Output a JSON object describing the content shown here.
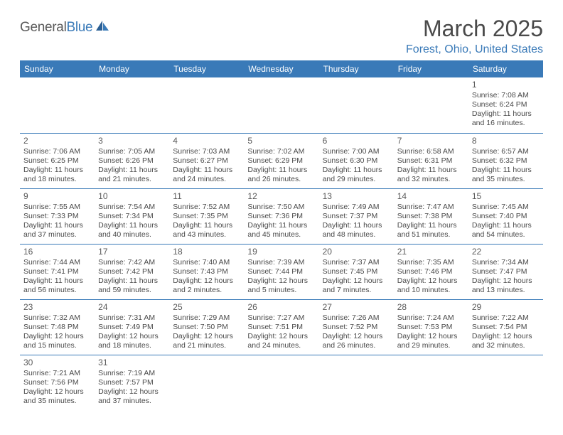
{
  "logo": {
    "text1": "General",
    "text2": "Blue"
  },
  "title": "March 2025",
  "location": "Forest, Ohio, United States",
  "header_bg": "#3a7ab8",
  "header_fg": "#ffffff",
  "border_color": "#3a7ab8",
  "text_color": "#4a4a4a",
  "location_color": "#3a7ab8",
  "weekdays": [
    "Sunday",
    "Monday",
    "Tuesday",
    "Wednesday",
    "Thursday",
    "Friday",
    "Saturday"
  ],
  "first_weekday_index": 6,
  "days": [
    {
      "n": 1,
      "sunrise": "7:08 AM",
      "sunset": "6:24 PM",
      "daylight": "11 hours and 16 minutes."
    },
    {
      "n": 2,
      "sunrise": "7:06 AM",
      "sunset": "6:25 PM",
      "daylight": "11 hours and 18 minutes."
    },
    {
      "n": 3,
      "sunrise": "7:05 AM",
      "sunset": "6:26 PM",
      "daylight": "11 hours and 21 minutes."
    },
    {
      "n": 4,
      "sunrise": "7:03 AM",
      "sunset": "6:27 PM",
      "daylight": "11 hours and 24 minutes."
    },
    {
      "n": 5,
      "sunrise": "7:02 AM",
      "sunset": "6:29 PM",
      "daylight": "11 hours and 26 minutes."
    },
    {
      "n": 6,
      "sunrise": "7:00 AM",
      "sunset": "6:30 PM",
      "daylight": "11 hours and 29 minutes."
    },
    {
      "n": 7,
      "sunrise": "6:58 AM",
      "sunset": "6:31 PM",
      "daylight": "11 hours and 32 minutes."
    },
    {
      "n": 8,
      "sunrise": "6:57 AM",
      "sunset": "6:32 PM",
      "daylight": "11 hours and 35 minutes."
    },
    {
      "n": 9,
      "sunrise": "7:55 AM",
      "sunset": "7:33 PM",
      "daylight": "11 hours and 37 minutes."
    },
    {
      "n": 10,
      "sunrise": "7:54 AM",
      "sunset": "7:34 PM",
      "daylight": "11 hours and 40 minutes."
    },
    {
      "n": 11,
      "sunrise": "7:52 AM",
      "sunset": "7:35 PM",
      "daylight": "11 hours and 43 minutes."
    },
    {
      "n": 12,
      "sunrise": "7:50 AM",
      "sunset": "7:36 PM",
      "daylight": "11 hours and 45 minutes."
    },
    {
      "n": 13,
      "sunrise": "7:49 AM",
      "sunset": "7:37 PM",
      "daylight": "11 hours and 48 minutes."
    },
    {
      "n": 14,
      "sunrise": "7:47 AM",
      "sunset": "7:38 PM",
      "daylight": "11 hours and 51 minutes."
    },
    {
      "n": 15,
      "sunrise": "7:45 AM",
      "sunset": "7:40 PM",
      "daylight": "11 hours and 54 minutes."
    },
    {
      "n": 16,
      "sunrise": "7:44 AM",
      "sunset": "7:41 PM",
      "daylight": "11 hours and 56 minutes."
    },
    {
      "n": 17,
      "sunrise": "7:42 AM",
      "sunset": "7:42 PM",
      "daylight": "11 hours and 59 minutes."
    },
    {
      "n": 18,
      "sunrise": "7:40 AM",
      "sunset": "7:43 PM",
      "daylight": "12 hours and 2 minutes."
    },
    {
      "n": 19,
      "sunrise": "7:39 AM",
      "sunset": "7:44 PM",
      "daylight": "12 hours and 5 minutes."
    },
    {
      "n": 20,
      "sunrise": "7:37 AM",
      "sunset": "7:45 PM",
      "daylight": "12 hours and 7 minutes."
    },
    {
      "n": 21,
      "sunrise": "7:35 AM",
      "sunset": "7:46 PM",
      "daylight": "12 hours and 10 minutes."
    },
    {
      "n": 22,
      "sunrise": "7:34 AM",
      "sunset": "7:47 PM",
      "daylight": "12 hours and 13 minutes."
    },
    {
      "n": 23,
      "sunrise": "7:32 AM",
      "sunset": "7:48 PM",
      "daylight": "12 hours and 15 minutes."
    },
    {
      "n": 24,
      "sunrise": "7:31 AM",
      "sunset": "7:49 PM",
      "daylight": "12 hours and 18 minutes."
    },
    {
      "n": 25,
      "sunrise": "7:29 AM",
      "sunset": "7:50 PM",
      "daylight": "12 hours and 21 minutes."
    },
    {
      "n": 26,
      "sunrise": "7:27 AM",
      "sunset": "7:51 PM",
      "daylight": "12 hours and 24 minutes."
    },
    {
      "n": 27,
      "sunrise": "7:26 AM",
      "sunset": "7:52 PM",
      "daylight": "12 hours and 26 minutes."
    },
    {
      "n": 28,
      "sunrise": "7:24 AM",
      "sunset": "7:53 PM",
      "daylight": "12 hours and 29 minutes."
    },
    {
      "n": 29,
      "sunrise": "7:22 AM",
      "sunset": "7:54 PM",
      "daylight": "12 hours and 32 minutes."
    },
    {
      "n": 30,
      "sunrise": "7:21 AM",
      "sunset": "7:56 PM",
      "daylight": "12 hours and 35 minutes."
    },
    {
      "n": 31,
      "sunrise": "7:19 AM",
      "sunset": "7:57 PM",
      "daylight": "12 hours and 37 minutes."
    }
  ]
}
